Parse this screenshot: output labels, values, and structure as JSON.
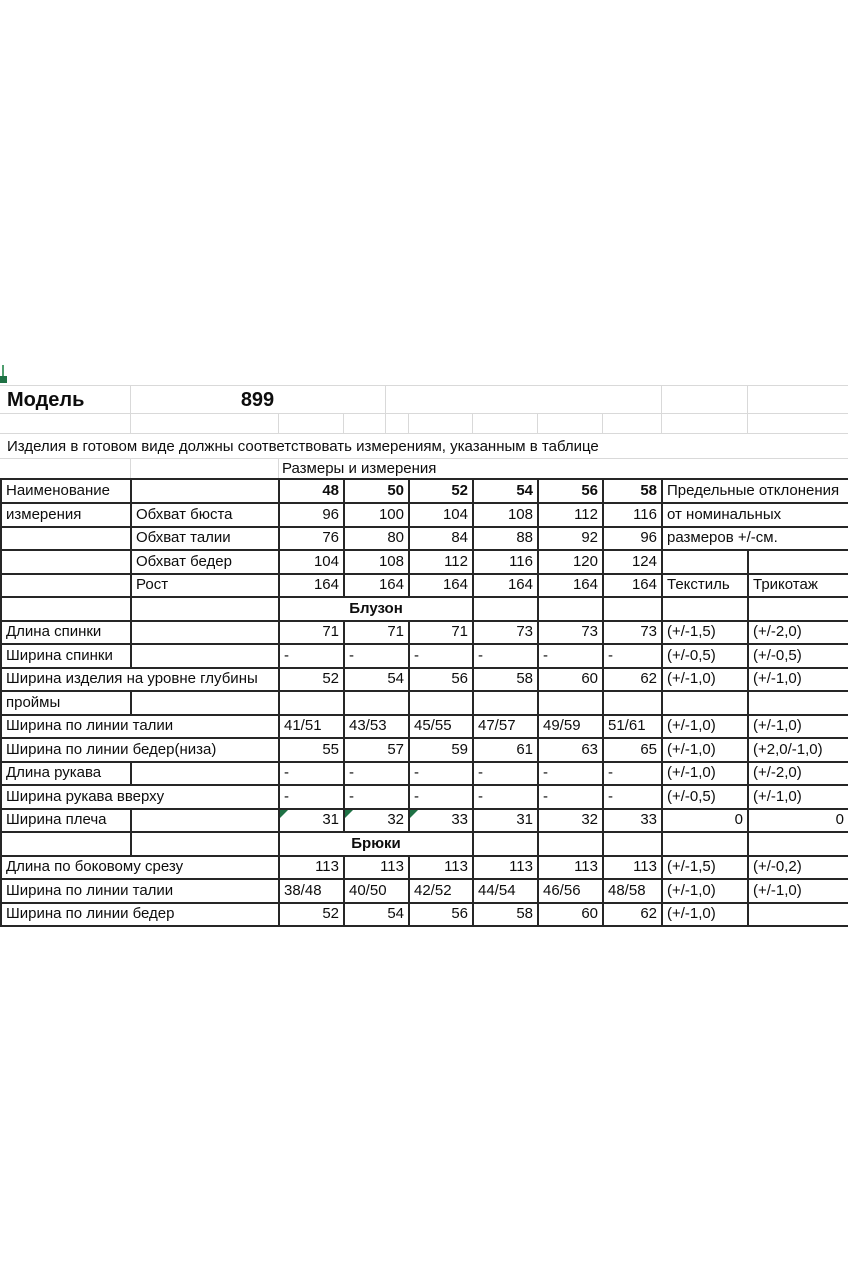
{
  "header": {
    "model_label": "Модель",
    "model_number": "899",
    "note": "Изделия в готовом виде должны соответствовать измерениям, указанным в таблице",
    "sizes_caption": "Размеры и измерения"
  },
  "colors": {
    "indicator_green": "#1f7245",
    "border_dark": "#262626",
    "gridline_gray": "#d9d9d9"
  },
  "icons": {
    "selection_marker": "green-square-marker",
    "cell_error_flag": "green-corner-triangle"
  },
  "table": {
    "size_columns": [
      "48",
      "50",
      "52",
      "54",
      "56",
      "58"
    ],
    "rows": [
      [
        {
          "t": "Наименование"
        },
        {
          "t": ""
        },
        {
          "t": "48",
          "a": "r",
          "b": 1
        },
        {
          "t": "50",
          "a": "r",
          "b": 1
        },
        {
          "t": "52",
          "a": "r",
          "b": 1
        },
        {
          "t": "54",
          "a": "r",
          "b": 1
        },
        {
          "t": "56",
          "a": "r",
          "b": 1
        },
        {
          "t": "58",
          "a": "r",
          "b": 1
        },
        {
          "t": "Предельные отклонения",
          "s": 2
        }
      ],
      [
        {
          "t": "измерения"
        },
        {
          "t": "Обхват бюста"
        },
        {
          "t": "96",
          "a": "r"
        },
        {
          "t": "100",
          "a": "r"
        },
        {
          "t": "104",
          "a": "r"
        },
        {
          "t": "108",
          "a": "r"
        },
        {
          "t": "112",
          "a": "r"
        },
        {
          "t": "116",
          "a": "r"
        },
        {
          "t": "от номинальных",
          "s": 2
        }
      ],
      [
        {
          "t": ""
        },
        {
          "t": "Обхват талии"
        },
        {
          "t": "76",
          "a": "r"
        },
        {
          "t": "80",
          "a": "r"
        },
        {
          "t": "84",
          "a": "r"
        },
        {
          "t": "88",
          "a": "r"
        },
        {
          "t": "92",
          "a": "r"
        },
        {
          "t": "96",
          "a": "r"
        },
        {
          "t": "размеров +/-см.",
          "s": 2
        }
      ],
      [
        {
          "t": ""
        },
        {
          "t": "Обхват бедер"
        },
        {
          "t": "104",
          "a": "r"
        },
        {
          "t": "108",
          "a": "r"
        },
        {
          "t": "112",
          "a": "r"
        },
        {
          "t": "116",
          "a": "r"
        },
        {
          "t": "120",
          "a": "r"
        },
        {
          "t": "124",
          "a": "r"
        },
        {
          "t": ""
        },
        {
          "t": ""
        }
      ],
      [
        {
          "t": ""
        },
        {
          "t": "Рост"
        },
        {
          "t": "164",
          "a": "r"
        },
        {
          "t": "164",
          "a": "r"
        },
        {
          "t": "164",
          "a": "r"
        },
        {
          "t": "164",
          "a": "r"
        },
        {
          "t": "164",
          "a": "r"
        },
        {
          "t": "164",
          "a": "r"
        },
        {
          "t": "Текстиль"
        },
        {
          "t": "Трикотаж"
        }
      ],
      [
        {
          "t": ""
        },
        {
          "t": ""
        },
        {
          "t": "Блузон",
          "s": 3,
          "sec": 1
        },
        {
          "t": ""
        },
        {
          "t": ""
        },
        {
          "t": ""
        },
        {
          "t": ""
        },
        {
          "t": ""
        }
      ],
      [
        {
          "t": "Длина спинки"
        },
        {
          "t": ""
        },
        {
          "t": "71",
          "a": "r"
        },
        {
          "t": "71",
          "a": "r"
        },
        {
          "t": "71",
          "a": "r"
        },
        {
          "t": "73",
          "a": "r"
        },
        {
          "t": "73",
          "a": "r"
        },
        {
          "t": "73",
          "a": "r"
        },
        {
          "t": "(+/-1,5)"
        },
        {
          "t": "(+/-2,0)"
        }
      ],
      [
        {
          "t": "Ширина спинки"
        },
        {
          "t": ""
        },
        {
          "t": "-"
        },
        {
          "t": "-"
        },
        {
          "t": "-"
        },
        {
          "t": "-"
        },
        {
          "t": "-"
        },
        {
          "t": "-"
        },
        {
          "t": "(+/-0,5)"
        },
        {
          "t": "(+/-0,5)"
        }
      ],
      [
        {
          "t": "Ширина изделия на уровне глубины",
          "s": 2
        },
        {
          "t": "52",
          "a": "r"
        },
        {
          "t": "54",
          "a": "r"
        },
        {
          "t": "56",
          "a": "r"
        },
        {
          "t": "58",
          "a": "r"
        },
        {
          "t": "60",
          "a": "r"
        },
        {
          "t": "62",
          "a": "r"
        },
        {
          "t": "(+/-1,0)"
        },
        {
          "t": "(+/-1,0)"
        }
      ],
      [
        {
          "t": "проймы"
        },
        {
          "t": ""
        },
        {
          "t": ""
        },
        {
          "t": ""
        },
        {
          "t": ""
        },
        {
          "t": ""
        },
        {
          "t": ""
        },
        {
          "t": ""
        },
        {
          "t": ""
        },
        {
          "t": ""
        }
      ],
      [
        {
          "t": "Ширина по линии талии",
          "s": 2
        },
        {
          "t": "41/51"
        },
        {
          "t": "43/53"
        },
        {
          "t": "45/55"
        },
        {
          "t": "47/57"
        },
        {
          "t": "49/59"
        },
        {
          "t": "51/61"
        },
        {
          "t": "(+/-1,0)"
        },
        {
          "t": "(+/-1,0)"
        }
      ],
      [
        {
          "t": "Ширина по линии бедер(низа)",
          "s": 2
        },
        {
          "t": "55",
          "a": "r"
        },
        {
          "t": "57",
          "a": "r"
        },
        {
          "t": "59",
          "a": "r"
        },
        {
          "t": "61",
          "a": "r"
        },
        {
          "t": "63",
          "a": "r"
        },
        {
          "t": "65",
          "a": "r"
        },
        {
          "t": "(+/-1,0)"
        },
        {
          "t": "(+2,0/-1,0)"
        }
      ],
      [
        {
          "t": "Длина рукава"
        },
        {
          "t": ""
        },
        {
          "t": "-"
        },
        {
          "t": "-"
        },
        {
          "t": "-"
        },
        {
          "t": "-"
        },
        {
          "t": "-"
        },
        {
          "t": "-"
        },
        {
          "t": "(+/-1,0)"
        },
        {
          "t": "(+/-2,0)"
        }
      ],
      [
        {
          "t": "Ширина рукава вверху",
          "s": 2
        },
        {
          "t": "-"
        },
        {
          "t": "-"
        },
        {
          "t": "-"
        },
        {
          "t": "-"
        },
        {
          "t": "-"
        },
        {
          "t": "-"
        },
        {
          "t": "(+/-0,5)"
        },
        {
          "t": "(+/-1,0)"
        }
      ],
      [
        {
          "t": "Ширина плеча"
        },
        {
          "t": ""
        },
        {
          "t": "31",
          "a": "r",
          "tri": 1
        },
        {
          "t": "32",
          "a": "r",
          "tri": 1
        },
        {
          "t": "33",
          "a": "r",
          "tri": 1
        },
        {
          "t": "31",
          "a": "r"
        },
        {
          "t": "32",
          "a": "r"
        },
        {
          "t": "33",
          "a": "r"
        },
        {
          "t": "0",
          "a": "r"
        },
        {
          "t": "0",
          "a": "r"
        }
      ],
      [
        {
          "t": ""
        },
        {
          "t": ""
        },
        {
          "t": "Брюки",
          "s": 3,
          "sec": 1
        },
        {
          "t": ""
        },
        {
          "t": ""
        },
        {
          "t": ""
        },
        {
          "t": ""
        },
        {
          "t": ""
        }
      ],
      [
        {
          "t": "Длина по боковому срезу",
          "s": 2
        },
        {
          "t": "113",
          "a": "r"
        },
        {
          "t": "113",
          "a": "r"
        },
        {
          "t": "113",
          "a": "r"
        },
        {
          "t": "113",
          "a": "r"
        },
        {
          "t": "113",
          "a": "r"
        },
        {
          "t": "113",
          "a": "r"
        },
        {
          "t": "(+/-1,5)"
        },
        {
          "t": "(+/-0,2)"
        }
      ],
      [
        {
          "t": "Ширина по линии талии",
          "s": 2
        },
        {
          "t": "38/48"
        },
        {
          "t": "40/50"
        },
        {
          "t": "42/52"
        },
        {
          "t": "44/54"
        },
        {
          "t": "46/56"
        },
        {
          "t": "48/58"
        },
        {
          "t": "(+/-1,0)"
        },
        {
          "t": "(+/-1,0)"
        }
      ],
      [
        {
          "t": "Ширина по линии бедер",
          "s": 2
        },
        {
          "t": "52",
          "a": "r"
        },
        {
          "t": "54",
          "a": "r"
        },
        {
          "t": "56",
          "a": "r"
        },
        {
          "t": "58",
          "a": "r"
        },
        {
          "t": "60",
          "a": "r"
        },
        {
          "t": "62",
          "a": "r"
        },
        {
          "t": "(+/-1,0)"
        },
        {
          "t": ""
        }
      ]
    ]
  }
}
